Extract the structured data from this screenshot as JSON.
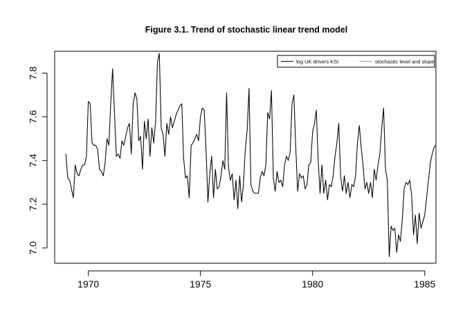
{
  "chart_data": {
    "type": "line",
    "title": "Figure 3.1. Trend of stochastic linear trend model",
    "xlabel": "",
    "ylabel": "",
    "xlim": [
      1968.5,
      1985.5
    ],
    "ylim": [
      6.93,
      7.9
    ],
    "x_ticks": [
      1970,
      1975,
      1980,
      1985
    ],
    "y_ticks": [
      7.0,
      7.2,
      7.4,
      7.6,
      7.8
    ],
    "x_tick_labels": [
      "1970",
      "1975",
      "1980",
      "1985"
    ],
    "y_tick_labels": [
      "7.0",
      "7.2",
      "7.4",
      "7.6",
      "7.8"
    ],
    "grid": false,
    "legend_position": "top-right",
    "x_start": 1969.0,
    "x_step_months": 1,
    "series": [
      {
        "name": "log UK drivers KSI",
        "style": "solid",
        "color": "#000000",
        "values": [
          7.43,
          7.32,
          7.31,
          7.27,
          7.23,
          7.38,
          7.34,
          7.33,
          7.36,
          7.38,
          7.38,
          7.42,
          7.67,
          7.66,
          7.48,
          7.47,
          7.47,
          7.45,
          7.36,
          7.35,
          7.33,
          7.39,
          7.5,
          7.47,
          7.66,
          7.82,
          7.62,
          7.42,
          7.43,
          7.41,
          7.49,
          7.47,
          7.51,
          7.55,
          7.57,
          7.43,
          7.66,
          7.71,
          7.68,
          7.49,
          7.51,
          7.36,
          7.58,
          7.5,
          7.59,
          7.42,
          7.55,
          7.48,
          7.58,
          7.85,
          7.89,
          7.55,
          7.52,
          7.42,
          7.57,
          7.52,
          7.6,
          7.55,
          7.58,
          7.61,
          7.63,
          7.65,
          7.66,
          7.41,
          7.32,
          7.33,
          7.23,
          7.47,
          7.48,
          7.5,
          7.52,
          7.49,
          7.6,
          7.64,
          7.63,
          7.45,
          7.21,
          7.34,
          7.42,
          7.23,
          7.36,
          7.27,
          7.28,
          7.33,
          7.4,
          7.36,
          7.71,
          7.37,
          7.31,
          7.34,
          7.22,
          7.31,
          7.18,
          7.33,
          7.21,
          7.29,
          7.45,
          7.54,
          7.73,
          7.29,
          7.26,
          7.25,
          7.25,
          7.25,
          7.32,
          7.35,
          7.33,
          7.38,
          7.62,
          7.59,
          7.72,
          7.32,
          7.26,
          7.35,
          7.3,
          7.31,
          7.28,
          7.38,
          7.42,
          7.4,
          7.44,
          7.66,
          7.7,
          7.46,
          7.26,
          7.34,
          7.32,
          7.33,
          7.27,
          7.29,
          7.38,
          7.39,
          7.53,
          7.57,
          7.63,
          7.4,
          7.25,
          7.38,
          7.25,
          7.31,
          7.22,
          7.29,
          7.28,
          7.33,
          7.42,
          7.48,
          7.57,
          7.33,
          7.26,
          7.33,
          7.25,
          7.3,
          7.23,
          7.29,
          7.28,
          7.33,
          7.48,
          7.56,
          7.46,
          7.38,
          7.27,
          7.3,
          7.25,
          7.3,
          7.23,
          7.36,
          7.31,
          7.38,
          7.43,
          7.55,
          7.64,
          7.36,
          7.31,
          6.96,
          7.1,
          7.08,
          7.09,
          6.98,
          7.06,
          7.03,
          7.13,
          7.27,
          7.3,
          7.29,
          7.31,
          7.24,
          7.06,
          7.15,
          7.02,
          7.16,
          7.09,
          7.12,
          7.15,
          7.23,
          7.31,
          7.39,
          7.43,
          7.46,
          7.47
        ]
      },
      {
        "name": "stochastic level and slope",
        "style": "dotted",
        "color": "#000000",
        "values": [
          7.43,
          7.32,
          7.31,
          7.27,
          7.23,
          7.38,
          7.34,
          7.33,
          7.36,
          7.38,
          7.38,
          7.42,
          7.67,
          7.66,
          7.48,
          7.47,
          7.47,
          7.45,
          7.36,
          7.35,
          7.33,
          7.39,
          7.5,
          7.47,
          7.66,
          7.82,
          7.62,
          7.42,
          7.43,
          7.41,
          7.49,
          7.47,
          7.51,
          7.55,
          7.57,
          7.43,
          7.66,
          7.71,
          7.68,
          7.49,
          7.51,
          7.36,
          7.58,
          7.5,
          7.59,
          7.42,
          7.55,
          7.48,
          7.58,
          7.85,
          7.89,
          7.55,
          7.52,
          7.42,
          7.57,
          7.52,
          7.6,
          7.55,
          7.58,
          7.61,
          7.63,
          7.65,
          7.66,
          7.41,
          7.32,
          7.33,
          7.23,
          7.47,
          7.48,
          7.5,
          7.52,
          7.49,
          7.6,
          7.64,
          7.63,
          7.45,
          7.21,
          7.34,
          7.42,
          7.23,
          7.36,
          7.27,
          7.28,
          7.33,
          7.4,
          7.36,
          7.71,
          7.37,
          7.31,
          7.34,
          7.22,
          7.31,
          7.18,
          7.33,
          7.21,
          7.29,
          7.45,
          7.54,
          7.73,
          7.29,
          7.26,
          7.25,
          7.25,
          7.25,
          7.32,
          7.35,
          7.33,
          7.38,
          7.62,
          7.59,
          7.72,
          7.32,
          7.26,
          7.35,
          7.3,
          7.31,
          7.28,
          7.38,
          7.42,
          7.4,
          7.44,
          7.66,
          7.7,
          7.46,
          7.26,
          7.34,
          7.32,
          7.33,
          7.27,
          7.29,
          7.38,
          7.39,
          7.53,
          7.57,
          7.63,
          7.4,
          7.25,
          7.38,
          7.25,
          7.31,
          7.22,
          7.29,
          7.28,
          7.33,
          7.42,
          7.48,
          7.57,
          7.33,
          7.26,
          7.33,
          7.25,
          7.3,
          7.23,
          7.29,
          7.28,
          7.33,
          7.48,
          7.56,
          7.46,
          7.38,
          7.27,
          7.3,
          7.25,
          7.3,
          7.23,
          7.36,
          7.31,
          7.38,
          7.43,
          7.55,
          7.64,
          7.36,
          7.31,
          6.96,
          7.1,
          7.08,
          7.09,
          6.98,
          7.06,
          7.03,
          7.13,
          7.27,
          7.3,
          7.29,
          7.31,
          7.24,
          7.06,
          7.15,
          7.02,
          7.16,
          7.09,
          7.12,
          7.15,
          7.23,
          7.31,
          7.39,
          7.43,
          7.46,
          7.47
        ]
      }
    ]
  }
}
